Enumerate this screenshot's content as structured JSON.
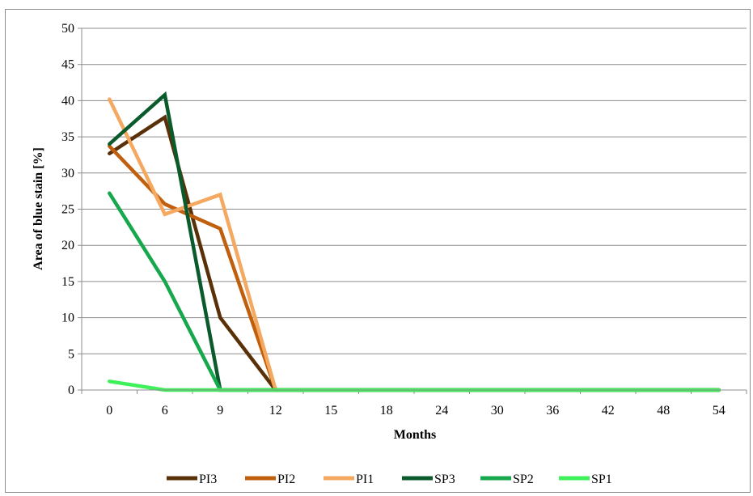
{
  "chart_data": {
    "type": "line",
    "categories": [
      "0",
      "6",
      "9",
      "12",
      "15",
      "18",
      "24",
      "30",
      "36",
      "42",
      "48",
      "54"
    ],
    "xlabel": "Months",
    "ylabel": "Area of blue stain  [%]",
    "ylim": [
      0,
      50
    ],
    "yticks": [
      0,
      5,
      10,
      15,
      20,
      25,
      30,
      35,
      40,
      45,
      50
    ],
    "grid": true,
    "legend_position": "bottom",
    "series": [
      {
        "name": "PI3",
        "color": "#5a3008",
        "values": [
          32.7,
          37.7,
          10.0,
          0,
          0,
          0,
          0,
          0,
          0,
          0,
          0,
          0
        ]
      },
      {
        "name": "PI2",
        "color": "#c0600f",
        "values": [
          33.7,
          25.7,
          22.3,
          0,
          0,
          0,
          0,
          0,
          0,
          0,
          0,
          0
        ]
      },
      {
        "name": "PI1",
        "color": "#f4a860",
        "values": [
          40.2,
          24.3,
          27.0,
          0,
          0,
          0,
          0,
          0,
          0,
          0,
          0,
          0
        ]
      },
      {
        "name": "SP3",
        "color": "#0b5a2c",
        "values": [
          34.0,
          40.8,
          0,
          0,
          0,
          0,
          0,
          0,
          0,
          0,
          0,
          0
        ]
      },
      {
        "name": "SP2",
        "color": "#17a84e",
        "values": [
          27.2,
          15.0,
          0,
          0,
          0,
          0,
          0,
          0,
          0,
          0,
          0,
          0
        ]
      },
      {
        "name": "SP1",
        "color": "#3ef05a",
        "values": [
          1.2,
          0,
          0,
          0,
          0,
          0,
          0,
          0,
          0,
          0,
          0,
          0
        ]
      }
    ]
  }
}
